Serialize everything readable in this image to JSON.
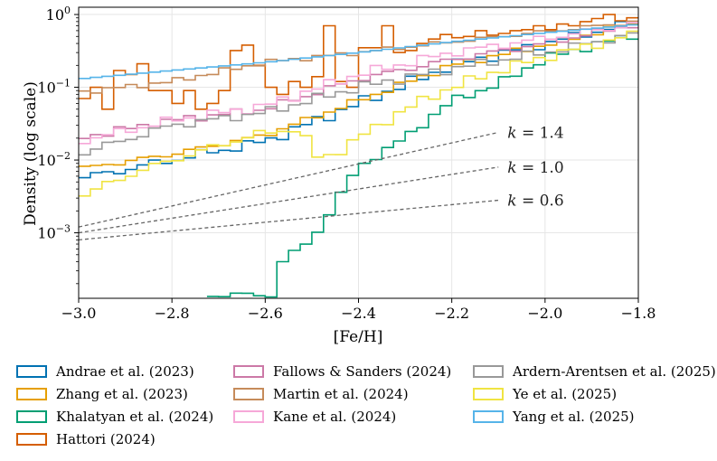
{
  "chart_data": {
    "type": "histogram-step",
    "title": "",
    "xlabel": "[Fe/H]",
    "ylabel": "Density (log scale)",
    "xlim": [
      -3.0,
      -1.8
    ],
    "ylim_log10": [
      -3.9,
      0.1
    ],
    "grid": true,
    "legend_position": "bottom",
    "x_ticks": [
      {
        "v": -3.0,
        "label": "−3.0"
      },
      {
        "v": -2.8,
        "label": "−2.8"
      },
      {
        "v": -2.6,
        "label": "−2.6"
      },
      {
        "v": -2.4,
        "label": "−2.4"
      },
      {
        "v": -2.2,
        "label": "−2.2"
      },
      {
        "v": -2.0,
        "label": "−2.0"
      },
      {
        "v": -1.8,
        "label": "−1.8"
      }
    ],
    "y_ticks": [
      {
        "v": 0,
        "base": "10",
        "exp": "0"
      },
      {
        "v": -1,
        "base": "10",
        "exp": "−1"
      },
      {
        "v": -2,
        "base": "10",
        "exp": "−2"
      },
      {
        "v": -3,
        "base": "10",
        "exp": "−3"
      }
    ],
    "bin_width": 0.025,
    "series": [
      {
        "name": "Andrae et al. (2023)",
        "color": "#0072B2",
        "anchors": [
          [
            -3.0,
            0.0055
          ],
          [
            -2.8,
            0.01
          ],
          [
            -2.6,
            0.018
          ],
          [
            -2.4,
            0.06
          ],
          [
            -2.2,
            0.2
          ],
          [
            -2.0,
            0.4
          ],
          [
            -1.8,
            0.8
          ]
        ],
        "noise": 0.08
      },
      {
        "name": "Zhang et al. (2023)",
        "color": "#E69F00",
        "anchors": [
          [
            -3.0,
            0.0075
          ],
          [
            -2.8,
            0.012
          ],
          [
            -2.6,
            0.022
          ],
          [
            -2.4,
            0.065
          ],
          [
            -2.2,
            0.2
          ],
          [
            -2.0,
            0.38
          ],
          [
            -1.8,
            0.78
          ]
        ],
        "noise": 0.05
      },
      {
        "name": "Khalatyan et al. (2024)",
        "color": "#009E73",
        "anchors": [
          [
            -2.725,
            0.00014
          ],
          [
            -2.58,
            0.00014
          ],
          [
            -2.575,
            0.00035
          ],
          [
            -2.5,
            0.0008
          ],
          [
            -2.45,
            0.0025
          ],
          [
            -2.4,
            0.008
          ],
          [
            -2.3,
            0.02
          ],
          [
            -2.2,
            0.065
          ],
          [
            -2.1,
            0.11
          ],
          [
            -2.0,
            0.25
          ],
          [
            -1.8,
            0.55
          ]
        ],
        "noise": 0.06
      },
      {
        "name": "Hattori (2024)",
        "color": "#D55E00",
        "values_manual": [
          [
            -3.0,
            0.07
          ],
          [
            -2.975,
            0.1
          ],
          [
            -2.95,
            0.05
          ],
          [
            -2.925,
            0.17
          ],
          [
            -2.9,
            0.15
          ],
          [
            -2.875,
            0.21
          ],
          [
            -2.85,
            0.09
          ],
          [
            -2.825,
            0.09
          ],
          [
            -2.8,
            0.06
          ],
          [
            -2.775,
            0.09
          ],
          [
            -2.75,
            0.05
          ],
          [
            -2.725,
            0.06
          ],
          [
            -2.7,
            0.09
          ],
          [
            -2.675,
            0.32
          ],
          [
            -2.65,
            0.38
          ],
          [
            -2.625,
            0.2
          ],
          [
            -2.6,
            0.1
          ],
          [
            -2.575,
            0.08
          ],
          [
            -2.55,
            0.12
          ],
          [
            -2.525,
            0.1
          ],
          [
            -2.5,
            0.14
          ],
          [
            -2.475,
            0.7
          ],
          [
            -2.45,
            0.12
          ],
          [
            -2.425,
            0.1
          ],
          [
            -2.4,
            0.35
          ],
          [
            -2.375,
            0.35
          ],
          [
            -2.35,
            0.7
          ],
          [
            -2.325,
            0.3
          ],
          [
            -2.3,
            0.32
          ],
          [
            -2.275,
            0.4
          ],
          [
            -2.25,
            0.46
          ],
          [
            -2.225,
            0.53
          ],
          [
            -2.2,
            0.48
          ],
          [
            -2.175,
            0.5
          ],
          [
            -2.15,
            0.6
          ],
          [
            -2.125,
            0.52
          ],
          [
            -2.1,
            0.55
          ],
          [
            -2.075,
            0.6
          ],
          [
            -2.05,
            0.62
          ],
          [
            -2.025,
            0.7
          ],
          [
            -2.0,
            0.62
          ],
          [
            -1.975,
            0.74
          ],
          [
            -1.95,
            0.7
          ],
          [
            -1.925,
            0.8
          ],
          [
            -1.9,
            0.88
          ],
          [
            -1.875,
            1.0
          ],
          [
            -1.85,
            0.82
          ],
          [
            -1.825,
            0.9
          ]
        ]
      },
      {
        "name": "Fallows & Sanders (2024)",
        "color": "#CC79A7",
        "anchors": [
          [
            -3.0,
            0.02
          ],
          [
            -2.8,
            0.035
          ],
          [
            -2.6,
            0.05
          ],
          [
            -2.4,
            0.13
          ],
          [
            -2.2,
            0.24
          ],
          [
            -2.0,
            0.4
          ],
          [
            -1.8,
            0.75
          ]
        ],
        "noise": 0.06
      },
      {
        "name": "Martin et al. (2024)",
        "color": "#C68B5A",
        "anchors": [
          [
            -3.0,
            0.085
          ],
          [
            -2.8,
            0.12
          ],
          [
            -2.6,
            0.22
          ],
          [
            -2.4,
            0.3
          ],
          [
            -2.2,
            0.42
          ],
          [
            -2.0,
            0.58
          ],
          [
            -1.8,
            0.8
          ]
        ],
        "noise": 0.04
      },
      {
        "name": "Kane et al. (2024)",
        "color": "#F6A8D8",
        "anchors": [
          [
            -3.0,
            0.018
          ],
          [
            -2.8,
            0.035
          ],
          [
            -2.6,
            0.055
          ],
          [
            -2.4,
            0.15
          ],
          [
            -2.2,
            0.3
          ],
          [
            -2.0,
            0.47
          ],
          [
            -1.8,
            0.75
          ]
        ],
        "noise": 0.07
      },
      {
        "name": "Ardern-Arentsen et al. (2025)",
        "color": "#999999",
        "anchors": [
          [
            -3.0,
            0.012
          ],
          [
            -2.8,
            0.03
          ],
          [
            -2.6,
            0.045
          ],
          [
            -2.4,
            0.1
          ],
          [
            -2.2,
            0.18
          ],
          [
            -2.0,
            0.3
          ],
          [
            -1.8,
            0.55
          ]
        ],
        "noise": 0.07
      },
      {
        "name": "Ye et al. (2025)",
        "color": "#F0E442",
        "anchors": [
          [
            -3.0,
            0.003
          ],
          [
            -2.9,
            0.006
          ],
          [
            -2.8,
            0.01
          ],
          [
            -2.625,
            0.022
          ],
          [
            -2.52,
            0.028
          ],
          [
            -2.5,
            0.0105
          ],
          [
            -2.45,
            0.012
          ],
          [
            -2.4,
            0.02
          ],
          [
            -2.3,
            0.05
          ],
          [
            -2.2,
            0.1
          ],
          [
            -2.1,
            0.17
          ],
          [
            -2.0,
            0.26
          ],
          [
            -1.8,
            0.55
          ]
        ],
        "noise": 0.07
      },
      {
        "name": "Yang et al. (2025)",
        "color": "#56B4E9",
        "anchors": [
          [
            -3.0,
            0.13
          ],
          [
            -2.8,
            0.17
          ],
          [
            -2.6,
            0.22
          ],
          [
            -2.4,
            0.3
          ],
          [
            -2.2,
            0.42
          ],
          [
            -2.0,
            0.56
          ],
          [
            -1.8,
            0.73
          ]
        ],
        "noise": 0.0
      }
    ],
    "reference_lines": [
      {
        "label_prefix": "k",
        "label_eq": " = ",
        "label_value": "1.4",
        "x0": -3.0,
        "y0": 0.0012,
        "x1": -2.1,
        "y1": 0.024
      },
      {
        "label_prefix": "k",
        "label_eq": " = ",
        "label_value": "1.0",
        "x0": -3.0,
        "y0": 0.001,
        "x1": -2.1,
        "y1": 0.008
      },
      {
        "label_prefix": "k",
        "label_eq": " = ",
        "label_value": "0.6",
        "x0": -3.0,
        "y0": 0.0008,
        "x1": -2.1,
        "y1": 0.0028
      }
    ]
  },
  "legend": {
    "items": [
      {
        "label": "Andrae et al. (2023)",
        "color": "#0072B2"
      },
      {
        "label": "Zhang et al. (2023)",
        "color": "#E69F00"
      },
      {
        "label": "Khalatyan et al. (2024)",
        "color": "#009E73"
      },
      {
        "label": "Hattori (2024)",
        "color": "#D55E00"
      },
      {
        "label": "Fallows & Sanders (2024)",
        "color": "#CC79A7"
      },
      {
        "label": "Martin et al. (2024)",
        "color": "#C68B5A"
      },
      {
        "label": "Kane et al. (2024)",
        "color": "#F6A8D8"
      },
      {
        "label": "Ardern-Arentsen et al. (2025)",
        "color": "#999999"
      },
      {
        "label": "Ye et al. (2025)",
        "color": "#F0E442"
      },
      {
        "label": "Yang et al. (2025)",
        "color": "#56B4E9"
      }
    ]
  }
}
